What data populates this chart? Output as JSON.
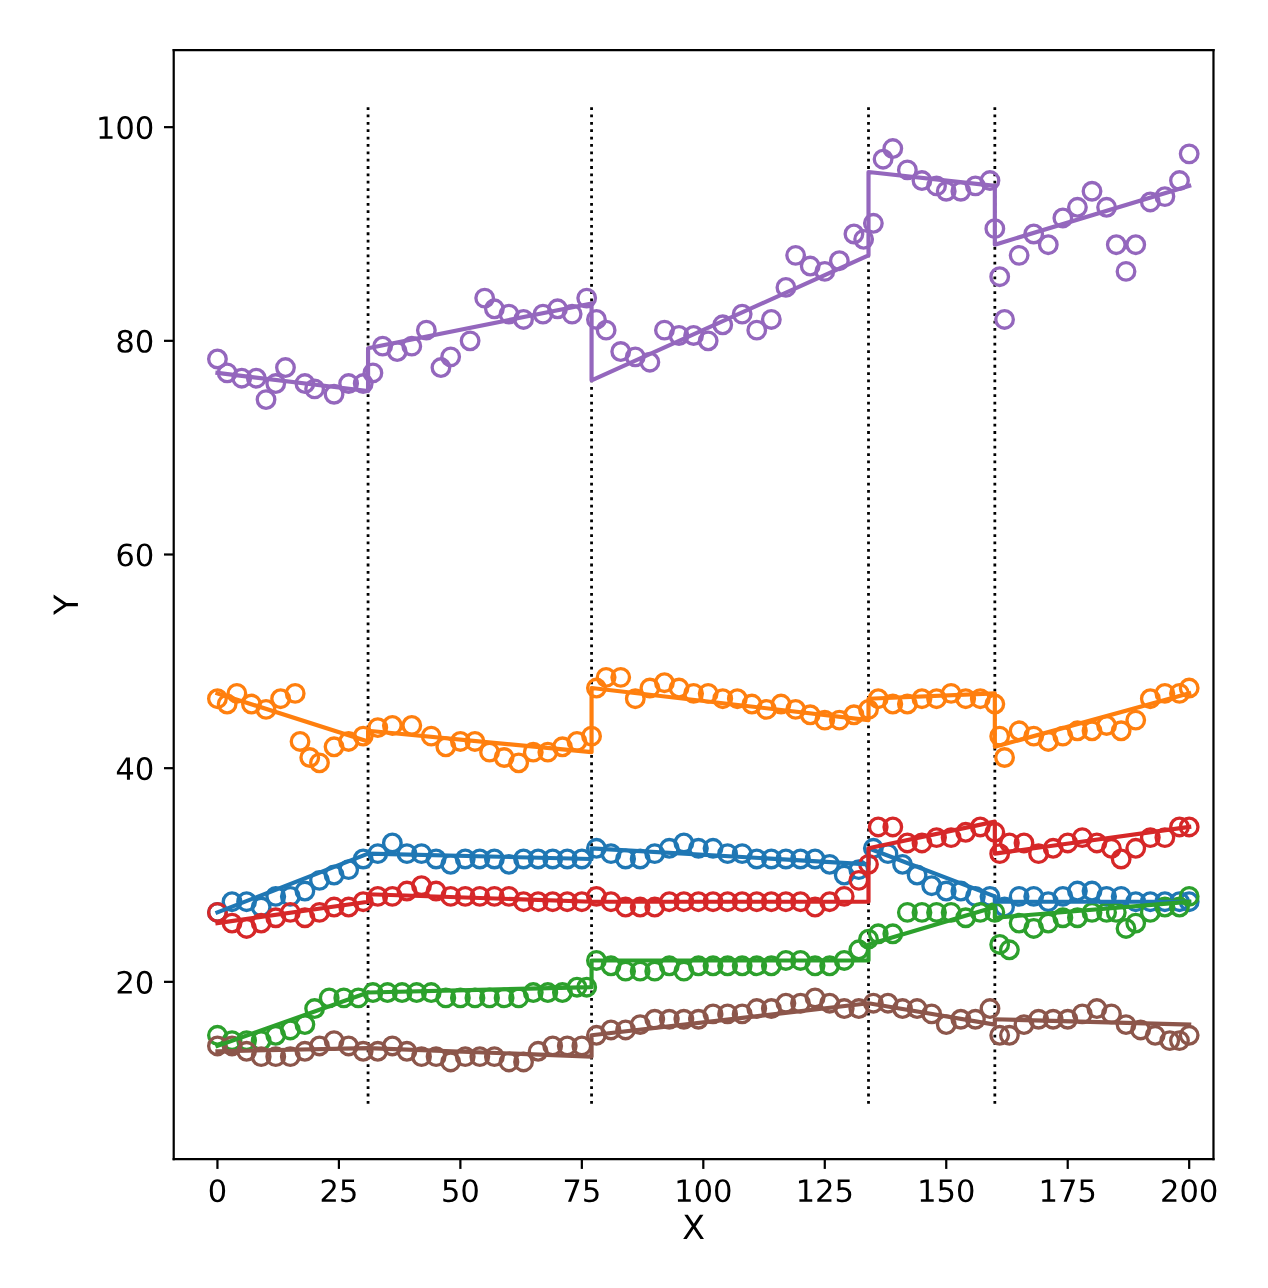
{
  "chart_data": {
    "type": "scatter",
    "xlabel": "X",
    "ylabel": "Y",
    "xlim": [
      -9,
      205
    ],
    "ylim": [
      3.4,
      107.2
    ],
    "xticks": [
      0,
      25,
      50,
      75,
      100,
      125,
      150,
      175,
      200
    ],
    "yticks": [
      20,
      40,
      60,
      80,
      100
    ],
    "grid": false,
    "legend": false,
    "ref_lines": [
      {
        "axis": "x",
        "value": 31,
        "color": "#000000",
        "line_style": "dotted"
      },
      {
        "axis": "x",
        "value": 77,
        "color": "#000000",
        "line_style": "dotted"
      },
      {
        "axis": "x",
        "value": 134,
        "color": "#000000",
        "line_style": "dotted"
      },
      {
        "axis": "x",
        "value": 160,
        "color": "#000000",
        "line_style": "dotted"
      }
    ],
    "series": [
      {
        "marker": "circle",
        "color": "#1f77b4",
        "x": [
          0,
          3,
          6,
          9,
          12,
          15,
          18,
          21,
          24,
          27,
          30,
          33,
          36,
          39,
          42,
          45,
          48,
          51,
          54,
          57,
          60,
          63,
          66,
          69,
          72,
          75,
          78,
          81,
          84,
          87,
          90,
          93,
          96,
          99,
          102,
          105,
          108,
          111,
          114,
          117,
          120,
          123,
          126,
          129,
          132,
          135,
          138,
          141,
          144,
          147,
          150,
          153,
          156,
          159,
          162,
          165,
          168,
          171,
          174,
          177,
          180,
          183,
          186,
          189,
          192,
          195,
          198,
          200
        ],
        "values": [
          26.5,
          27.5,
          27.5,
          27,
          28,
          28,
          28.5,
          29.5,
          30,
          30.5,
          31.5,
          32,
          33,
          32,
          32,
          31.5,
          31,
          31.5,
          31.5,
          31.5,
          31,
          31.5,
          31.5,
          31.5,
          31.5,
          31.5,
          32.5,
          32,
          31.5,
          31.5,
          32,
          32.5,
          33,
          32.5,
          32.5,
          32,
          32,
          31.5,
          31.5,
          31.5,
          31.5,
          31.5,
          31,
          30,
          30.5,
          32.5,
          32,
          31,
          30,
          29,
          28.5,
          28.5,
          28,
          28,
          27,
          28,
          28,
          27.5,
          28,
          28.5,
          28.5,
          28,
          28,
          27.5,
          27.5,
          27.5,
          27.5,
          27.5
        ]
      },
      {
        "marker": "circle",
        "color": "#ff7f0e",
        "x": [
          0,
          2,
          4,
          7,
          10,
          13,
          16,
          17,
          19,
          21,
          24,
          27,
          30,
          33,
          36,
          40,
          44,
          47,
          50,
          53,
          56,
          59,
          62,
          65,
          68,
          71,
          74,
          77,
          78,
          80,
          83,
          86,
          89,
          92,
          95,
          98,
          101,
          104,
          107,
          110,
          113,
          116,
          119,
          122,
          125,
          128,
          131,
          134,
          136,
          139,
          142,
          145,
          148,
          151,
          154,
          157,
          160,
          161,
          162,
          165,
          168,
          171,
          174,
          177,
          180,
          183,
          186,
          189,
          192,
          195,
          198,
          200
        ],
        "values": [
          46.5,
          46,
          47,
          46,
          45.5,
          46.5,
          47,
          42.5,
          41,
          40.5,
          42,
          42.5,
          43,
          43.8,
          44,
          44,
          43,
          42,
          42.5,
          42.5,
          41.5,
          41,
          40.5,
          41.5,
          41.5,
          42,
          42.5,
          43,
          47.5,
          48.5,
          48.5,
          46.5,
          47.5,
          48,
          47.5,
          47,
          47,
          46.5,
          46.5,
          46,
          45.5,
          46,
          45.5,
          45,
          44.5,
          44.5,
          45,
          45.5,
          46.5,
          46,
          46,
          46.5,
          46.5,
          47,
          46.5,
          46.5,
          46,
          43,
          41,
          43.5,
          43,
          42.5,
          43,
          43.5,
          43.5,
          44,
          43.5,
          44.5,
          46.5,
          47,
          47,
          47.5
        ]
      },
      {
        "marker": "circle",
        "color": "#2ca02c",
        "x": [
          0,
          3,
          6,
          9,
          12,
          15,
          18,
          20,
          23,
          26,
          29,
          32,
          35,
          38,
          41,
          44,
          47,
          50,
          53,
          56,
          59,
          62,
          65,
          68,
          71,
          74,
          76,
          78,
          81,
          84,
          87,
          90,
          93,
          96,
          99,
          102,
          105,
          108,
          111,
          114,
          117,
          120,
          123,
          126,
          129,
          132,
          134,
          136,
          139,
          142,
          145,
          148,
          151,
          154,
          157,
          160,
          161,
          163,
          165,
          168,
          171,
          174,
          177,
          180,
          183,
          185,
          187,
          189,
          192,
          195,
          198,
          200
        ],
        "values": [
          15,
          14.5,
          14.5,
          14.5,
          15,
          15.5,
          16,
          17.5,
          18.5,
          18.5,
          18.5,
          19,
          19,
          19,
          19,
          19,
          18.5,
          18.5,
          18.5,
          18.5,
          18.5,
          18.5,
          19,
          19,
          19,
          19.5,
          19.5,
          22,
          21.5,
          21,
          21,
          21,
          21.5,
          21,
          21.5,
          21.5,
          21.5,
          21.5,
          21.5,
          21.5,
          22,
          22,
          21.5,
          21.5,
          22,
          23,
          24,
          24.5,
          24.5,
          26.5,
          26.5,
          26.5,
          26.5,
          26,
          26.5,
          26.5,
          23.5,
          23,
          25.5,
          25,
          25.5,
          26,
          26,
          26.5,
          26.5,
          26.5,
          25,
          25.5,
          26.5,
          27,
          27,
          28
        ]
      },
      {
        "marker": "circle",
        "color": "#d62728",
        "x": [
          0,
          3,
          6,
          9,
          12,
          15,
          18,
          21,
          24,
          27,
          30,
          33,
          36,
          39,
          42,
          45,
          48,
          51,
          54,
          57,
          60,
          63,
          66,
          69,
          72,
          75,
          78,
          81,
          84,
          87,
          90,
          93,
          96,
          99,
          102,
          105,
          108,
          111,
          114,
          117,
          120,
          123,
          126,
          129,
          132,
          134,
          136,
          139,
          142,
          145,
          148,
          151,
          154,
          157,
          160,
          161,
          163,
          166,
          169,
          172,
          175,
          178,
          181,
          184,
          186,
          189,
          192,
          195,
          198,
          200
        ],
        "values": [
          26.5,
          25.5,
          25,
          25.5,
          26,
          26.5,
          26,
          26.5,
          27,
          27,
          27.5,
          28,
          28,
          28.5,
          29,
          28.5,
          28,
          28,
          28,
          28,
          28,
          27.5,
          27.5,
          27.5,
          27.5,
          27.5,
          28,
          27.5,
          27,
          27,
          27,
          27.5,
          27.5,
          27.5,
          27.5,
          27.5,
          27.5,
          27.5,
          27.5,
          27.5,
          27.5,
          27,
          27.5,
          28,
          29.5,
          31,
          34.5,
          34.5,
          33,
          33,
          33.5,
          33.5,
          34,
          34.5,
          34,
          32,
          33,
          33,
          32,
          32.5,
          33,
          33.5,
          33,
          32.5,
          31.5,
          32.5,
          33.5,
          33.5,
          34.5,
          34.5
        ]
      },
      {
        "marker": "circle",
        "color": "#9467bd",
        "x": [
          0,
          2,
          5,
          8,
          10,
          12,
          14,
          18,
          20,
          24,
          27,
          30,
          32,
          34,
          37,
          40,
          43,
          46,
          48,
          52,
          55,
          57,
          60,
          63,
          67,
          70,
          73,
          76,
          78,
          80,
          83,
          86,
          89,
          92,
          95,
          98,
          101,
          104,
          108,
          111,
          114,
          117,
          119,
          122,
          125,
          128,
          131,
          133,
          135,
          137,
          139,
          142,
          145,
          148,
          150,
          153,
          156,
          159,
          160,
          161,
          162,
          165,
          168,
          171,
          174,
          177,
          180,
          183,
          185,
          187,
          189,
          192,
          195,
          198,
          200
        ],
        "values": [
          78.3,
          77,
          76.5,
          76.5,
          74.5,
          76,
          77.5,
          76,
          75.5,
          75,
          76,
          76,
          77,
          79.5,
          79,
          79.5,
          81,
          77.5,
          78.5,
          80,
          84,
          83,
          82.5,
          82,
          82.5,
          83,
          82.5,
          84,
          82,
          81,
          79,
          78.5,
          78,
          81,
          80.5,
          80.5,
          80,
          81.5,
          82.5,
          81,
          82,
          85,
          88,
          87,
          86.5,
          87.5,
          90,
          89.5,
          91,
          97,
          98,
          96,
          95,
          94.5,
          94,
          94,
          94.5,
          95,
          90.5,
          86,
          82,
          88,
          90,
          89,
          91.5,
          92.5,
          94,
          92.5,
          89,
          86.5,
          89,
          93,
          93.5,
          95,
          97.5
        ]
      },
      {
        "marker": "circle",
        "color": "#8c564b",
        "x": [
          0,
          3,
          6,
          9,
          12,
          15,
          18,
          21,
          24,
          27,
          30,
          33,
          36,
          39,
          42,
          45,
          48,
          51,
          54,
          57,
          60,
          63,
          66,
          69,
          72,
          75,
          78,
          81,
          84,
          87,
          90,
          93,
          96,
          99,
          102,
          105,
          108,
          111,
          114,
          117,
          120,
          123,
          126,
          129,
          132,
          135,
          138,
          141,
          144,
          147,
          150,
          153,
          156,
          159,
          161,
          163,
          166,
          169,
          172,
          175,
          178,
          181,
          184,
          187,
          190,
          193,
          196,
          198,
          200
        ],
        "values": [
          14,
          14,
          13.5,
          13,
          13,
          13,
          13.5,
          14,
          14.5,
          14,
          13.5,
          13.5,
          14,
          13.5,
          13,
          13,
          12.5,
          13,
          13,
          13,
          12.5,
          12.5,
          13.5,
          14,
          14,
          14,
          15,
          15.5,
          15.5,
          16,
          16.5,
          16.5,
          16.5,
          16.5,
          17,
          17,
          17,
          17.5,
          17.5,
          18,
          18,
          18.5,
          18,
          17.5,
          17.5,
          18,
          18,
          17.5,
          17.5,
          17,
          16,
          16.5,
          16.5,
          17.5,
          15,
          15,
          16,
          16.5,
          16.5,
          16.5,
          17,
          17.5,
          17,
          16,
          15.5,
          15,
          14.5,
          14.5,
          15
        ]
      },
      {
        "type": "line",
        "color": "#1f77b4",
        "x": [
          0,
          31,
          31,
          77,
          77,
          134,
          134,
          160,
          160,
          200
        ],
        "values": [
          26.5,
          32,
          32,
          31.5,
          32.5,
          31,
          32.5,
          28,
          27.5,
          27.5
        ]
      },
      {
        "type": "line",
        "color": "#ff7f0e",
        "x": [
          0,
          31,
          31,
          77,
          77,
          134,
          134,
          160,
          160,
          200
        ],
        "values": [
          47,
          42.5,
          43.5,
          41.5,
          47.5,
          44.5,
          46.5,
          47,
          42,
          47
        ]
      },
      {
        "type": "line",
        "color": "#2ca02c",
        "x": [
          0,
          31,
          31,
          77,
          77,
          134,
          134,
          160,
          160,
          200
        ],
        "values": [
          14,
          19,
          19,
          19.5,
          22,
          22,
          23.5,
          27,
          26,
          27.5
        ]
      },
      {
        "type": "line",
        "color": "#d62728",
        "x": [
          0,
          31,
          31,
          77,
          77,
          134,
          134,
          160,
          160,
          200
        ],
        "values": [
          25.5,
          27.5,
          28.2,
          27.5,
          27.5,
          27.5,
          32.5,
          35,
          32,
          34.5
        ]
      },
      {
        "type": "line",
        "color": "#9467bd",
        "x": [
          0,
          31,
          31,
          77,
          77,
          134,
          134,
          160,
          160,
          200
        ],
        "values": [
          77,
          75.3,
          79.3,
          83.5,
          76.3,
          88,
          95.8,
          94.5,
          89,
          94.5
        ]
      },
      {
        "type": "line",
        "color": "#8c564b",
        "x": [
          0,
          31,
          31,
          77,
          77,
          134,
          134,
          160,
          160,
          200
        ],
        "values": [
          13.5,
          13.8,
          13.8,
          13,
          15,
          18,
          18,
          16,
          16.5,
          16
        ]
      }
    ]
  }
}
